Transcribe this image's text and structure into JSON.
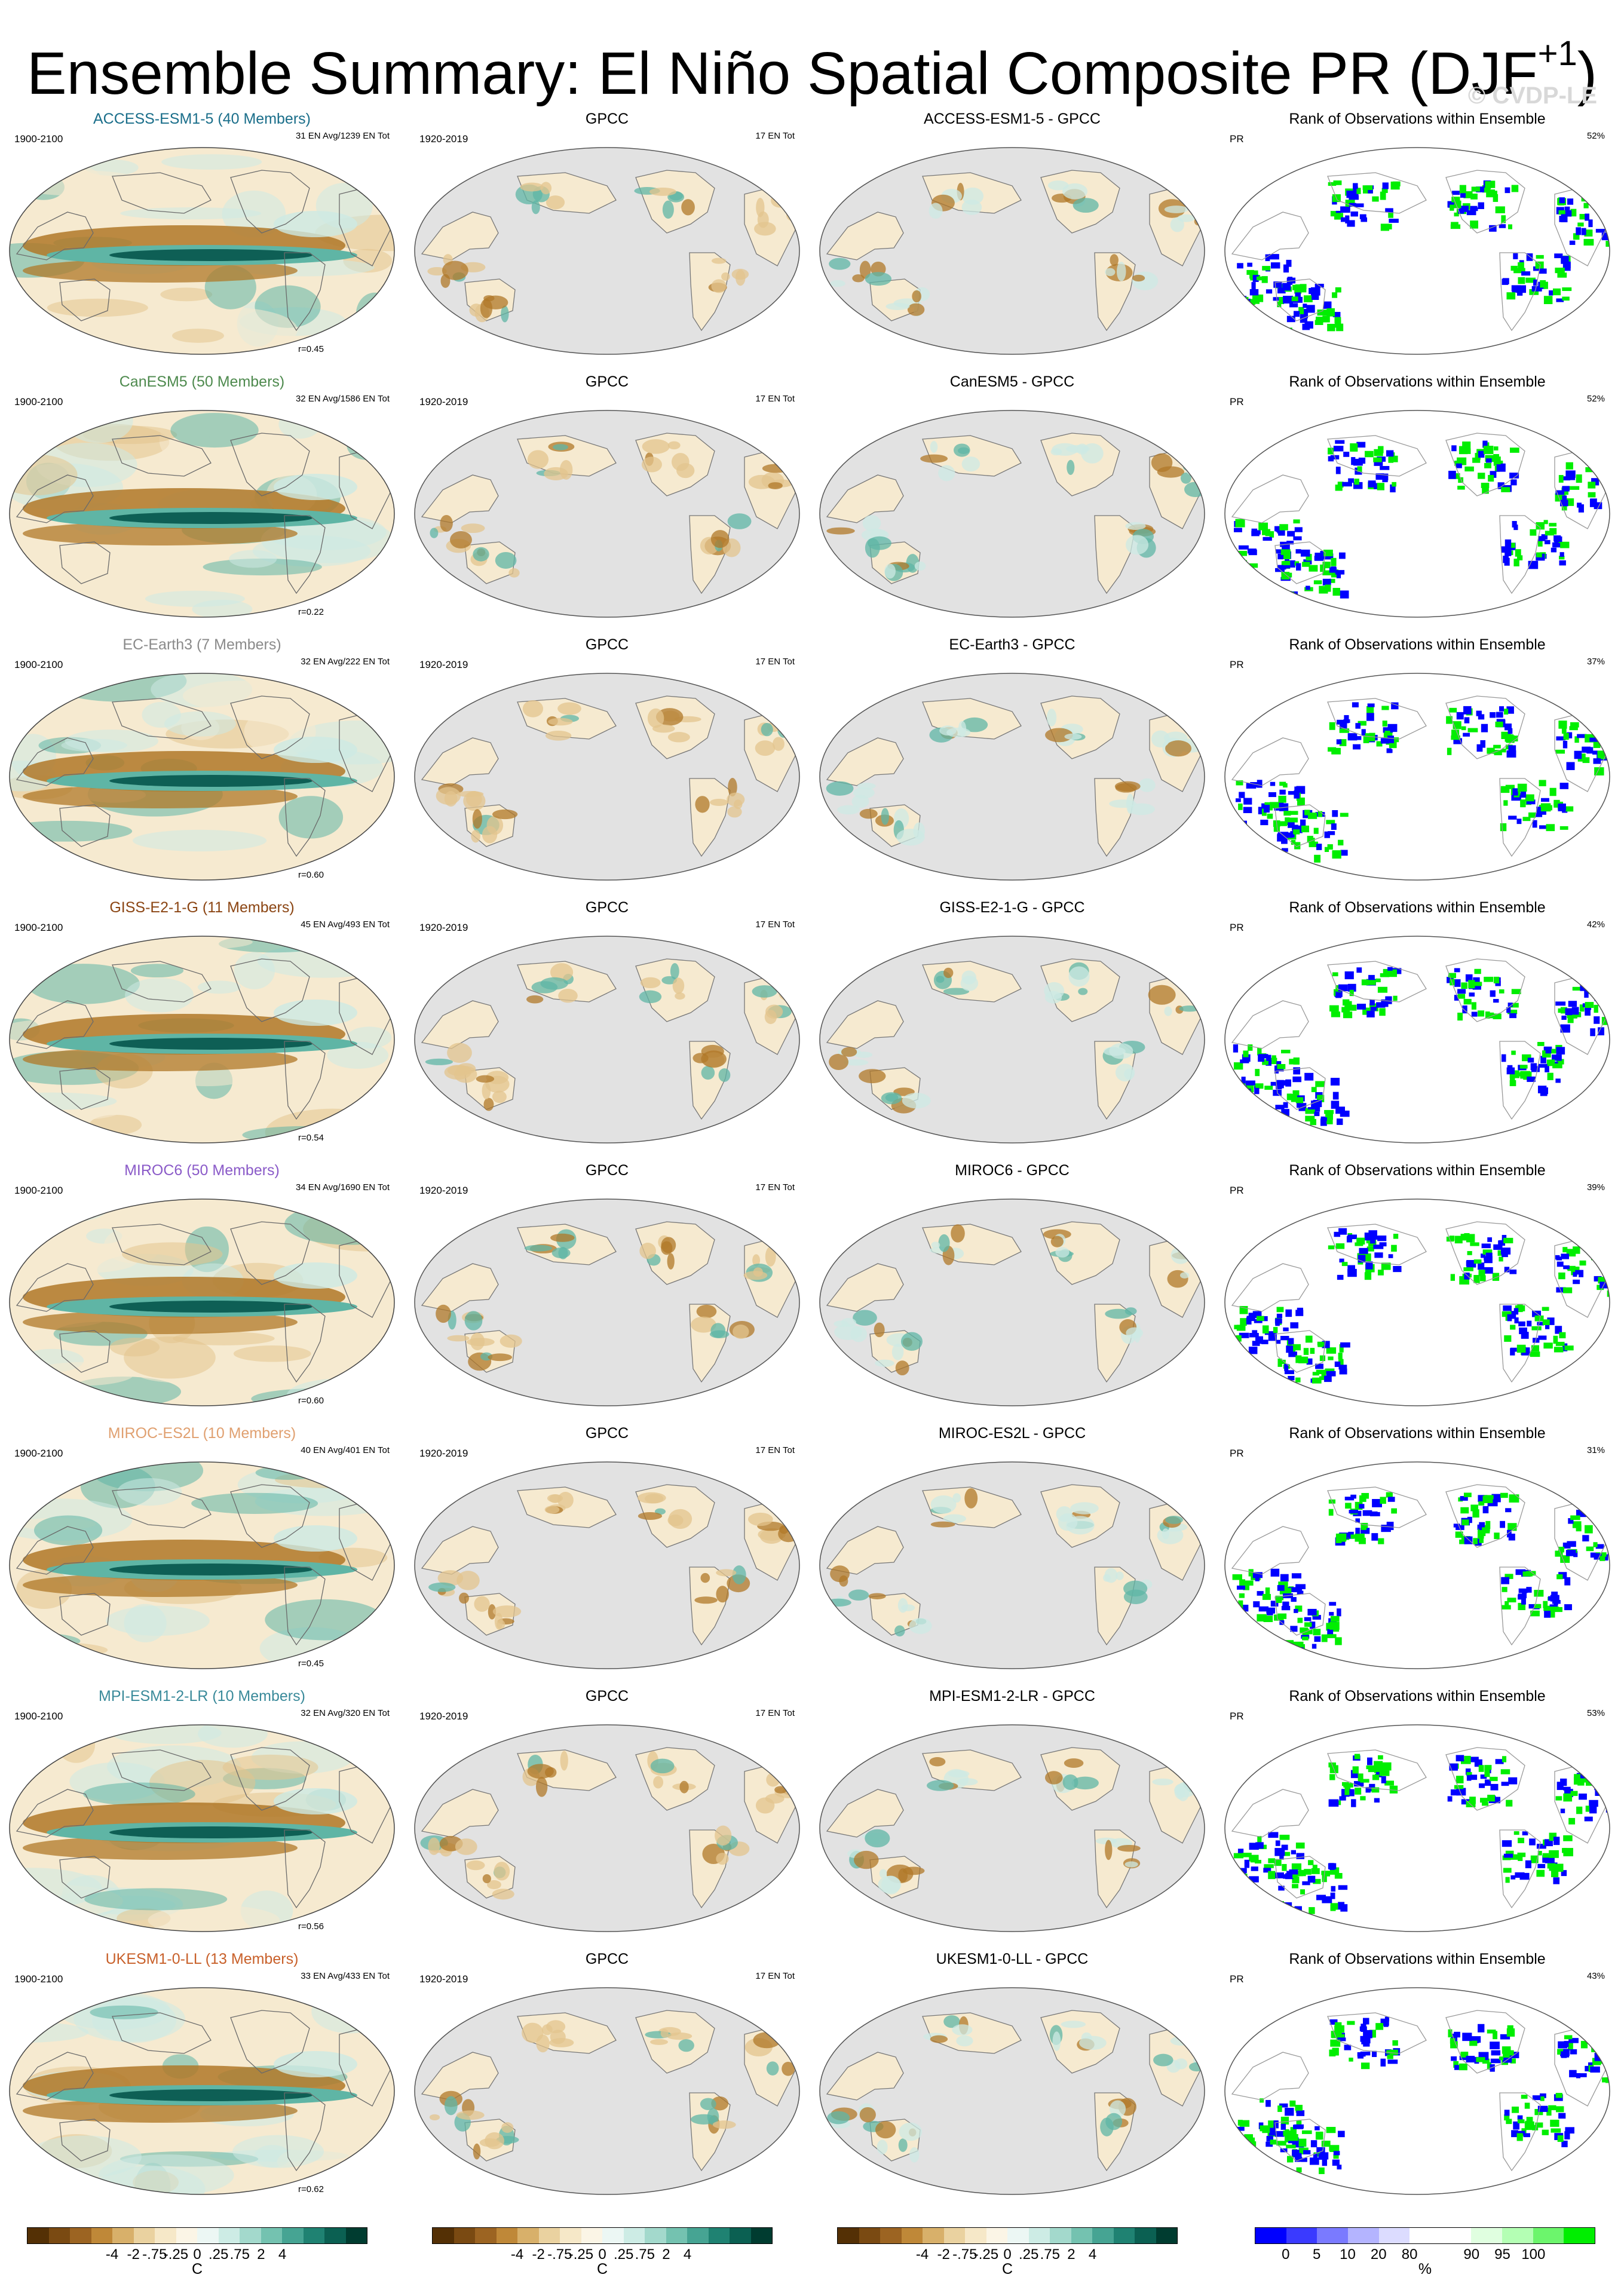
{
  "title": {
    "main": "Ensemble Summary: El Niño Spatial Composite PR (DJF",
    "sup": "+1",
    "close": ")"
  },
  "copyright": "© CVDP-LE",
  "colors": {
    "brown_dark": "#6b3a0c",
    "brown": "#b07828",
    "tan": "#e3c48e",
    "cream": "#f6ead0",
    "mint": "#cdeae4",
    "teal": "#5fb5a5",
    "teal_dark": "#0e5f55",
    "rank_blue": "#0000ff",
    "rank_green": "#00ee00",
    "land_gray": "#e2e2e2"
  },
  "rows": [
    {
      "model": "ACCESS-ESM1-5 (40 Members)",
      "model_color": "#1a6e8a",
      "years": "1900-2100",
      "counts": "31 EN Avg/1239 EN Tot",
      "r": "r=0.45",
      "obs_title": "GPCC",
      "obs_years": "1920-2019",
      "obs_counts": "17 EN Tot",
      "diff_title": "ACCESS-ESM1-5 - GPCC",
      "rank_title": "Rank of Observations within Ensemble",
      "rank_var": "PR",
      "rank_pct": "52%"
    },
    {
      "model": "CanESM5 (50 Members)",
      "model_color": "#4e8a4e",
      "years": "1900-2100",
      "counts": "32 EN Avg/1586 EN Tot",
      "r": "r=0.22",
      "obs_title": "GPCC",
      "obs_years": "1920-2019",
      "obs_counts": "17 EN Tot",
      "diff_title": "CanESM5 - GPCC",
      "rank_title": "Rank of Observations within Ensemble",
      "rank_var": "PR",
      "rank_pct": "52%"
    },
    {
      "model": "EC-Earth3 (7 Members)",
      "model_color": "#8a8a8a",
      "years": "1900-2100",
      "counts": "32 EN Avg/222 EN Tot",
      "r": "r=0.60",
      "obs_title": "GPCC",
      "obs_years": "1920-2019",
      "obs_counts": "17 EN Tot",
      "diff_title": "EC-Earth3 - GPCC",
      "rank_title": "Rank of Observations within Ensemble",
      "rank_var": "PR",
      "rank_pct": "37%"
    },
    {
      "model": "GISS-E2-1-G (11 Members)",
      "model_color": "#8b4513",
      "years": "1900-2100",
      "counts": "45 EN Avg/493 EN Tot",
      "r": "r=0.54",
      "obs_title": "GPCC",
      "obs_years": "1920-2019",
      "obs_counts": "17 EN Tot",
      "diff_title": "GISS-E2-1-G - GPCC",
      "rank_title": "Rank of Observations within Ensemble",
      "rank_var": "PR",
      "rank_pct": "42%"
    },
    {
      "model": "MIROC6 (50 Members)",
      "model_color": "#8a5ac8",
      "years": "1900-2100",
      "counts": "34 EN Avg/1690 EN Tot",
      "r": "r=0.60",
      "obs_title": "GPCC",
      "obs_years": "1920-2019",
      "obs_counts": "17 EN Tot",
      "diff_title": "MIROC6 - GPCC",
      "rank_title": "Rank of Observations within Ensemble",
      "rank_var": "PR",
      "rank_pct": "39%"
    },
    {
      "model": "MIROC-ES2L (10 Members)",
      "model_color": "#e0a070",
      "years": "1900-2100",
      "counts": "40 EN Avg/401 EN Tot",
      "r": "r=0.45",
      "obs_title": "GPCC",
      "obs_years": "1920-2019",
      "obs_counts": "17 EN Tot",
      "diff_title": "MIROC-ES2L - GPCC",
      "rank_title": "Rank of Observations within Ensemble",
      "rank_var": "PR",
      "rank_pct": "31%"
    },
    {
      "model": "MPI-ESM1-2-LR (10 Members)",
      "model_color": "#3a8a9a",
      "years": "1900-2100",
      "counts": "32 EN Avg/320 EN Tot",
      "r": "r=0.56",
      "obs_title": "GPCC",
      "obs_years": "1920-2019",
      "obs_counts": "17 EN Tot",
      "diff_title": "MPI-ESM1-2-LR - GPCC",
      "rank_title": "Rank of Observations within Ensemble",
      "rank_var": "PR",
      "rank_pct": "53%"
    },
    {
      "model": "UKESM1-0-LL (13 Members)",
      "model_color": "#c8602a",
      "years": "1900-2100",
      "counts": "33 EN Avg/433 EN Tot",
      "r": "r=0.62",
      "obs_title": "GPCC",
      "obs_years": "1920-2019",
      "obs_counts": "17 EN Tot",
      "diff_title": "UKESM1-0-LL - GPCC",
      "rank_title": "Rank of Observations within Ensemble",
      "rank_var": "PR",
      "rank_pct": "43%"
    }
  ],
  "colorbars": [
    {
      "unit": "C",
      "swatches": [
        "#543005",
        "#7a4a12",
        "#9c6422",
        "#bf8838",
        "#d8b06a",
        "#ead2a0",
        "#f6e8c8",
        "#fbf5e6",
        "#ecf7f4",
        "#cdece5",
        "#a3d9cc",
        "#74c2b0",
        "#46a493",
        "#1f8272",
        "#0b6052",
        "#003c30"
      ],
      "ticks": [
        "-4",
        "-2",
        "-.75",
        "-.25",
        "0",
        ".25",
        ".75",
        "2",
        "4"
      ]
    },
    {
      "unit": "C",
      "swatches": [
        "#543005",
        "#7a4a12",
        "#9c6422",
        "#bf8838",
        "#d8b06a",
        "#ead2a0",
        "#f6e8c8",
        "#fbf5e6",
        "#ecf7f4",
        "#cdece5",
        "#a3d9cc",
        "#74c2b0",
        "#46a493",
        "#1f8272",
        "#0b6052",
        "#003c30"
      ],
      "ticks": [
        "-4",
        "-2",
        "-.75",
        "-.25",
        "0",
        ".25",
        ".75",
        "2",
        "4"
      ]
    },
    {
      "unit": "C",
      "swatches": [
        "#543005",
        "#7a4a12",
        "#9c6422",
        "#bf8838",
        "#d8b06a",
        "#ead2a0",
        "#f6e8c8",
        "#fbf5e6",
        "#ecf7f4",
        "#cdece5",
        "#a3d9cc",
        "#74c2b0",
        "#46a493",
        "#1f8272",
        "#0b6052",
        "#003c30"
      ],
      "ticks": [
        "-4",
        "-2",
        "-.75",
        "-.25",
        "0",
        ".25",
        ".75",
        "2",
        "4"
      ]
    },
    {
      "unit": "%",
      "swatches": [
        "#0000ff",
        "#3a3aff",
        "#7a7aff",
        "#b4b4ff",
        "#dcdcff",
        "#ffffff",
        "#ffffff",
        "#e0ffe0",
        "#b4ffb4",
        "#6cf56c",
        "#00ee00"
      ],
      "ticks": [
        "0",
        "5",
        "10",
        "20",
        "80",
        "90",
        "95",
        "100"
      ]
    }
  ]
}
